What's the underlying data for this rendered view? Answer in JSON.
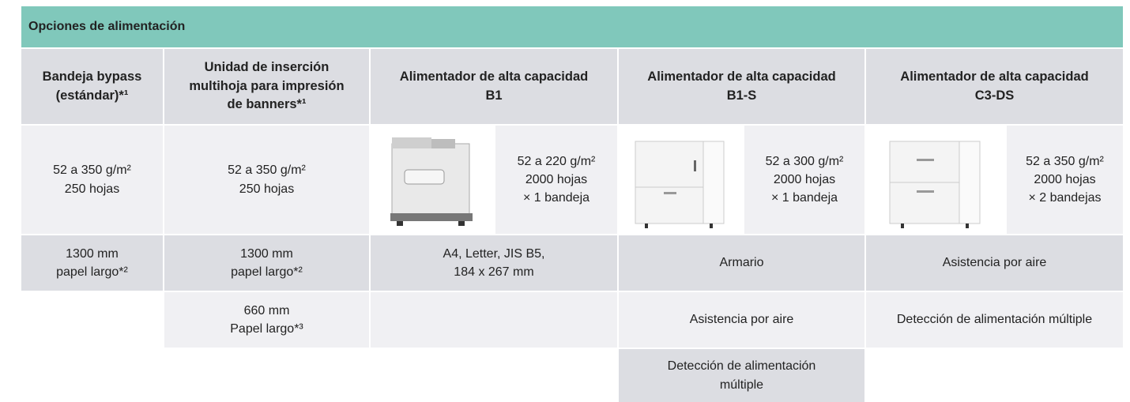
{
  "title": "Opciones de alimentación",
  "table": {
    "header": [
      "Bandeja bypass\n(estándar)*¹",
      "Unidad de inserción\nmultihoja para impresión\nde banners*¹",
      "Alimentador de alta capacidad\nB1",
      "Alimentador de alta capacidad\nB1-S",
      "Alimentador de alta capacidad\nC3-DS"
    ],
    "rows": [
      [
        "52 a 350 g/m²\n250 hojas",
        "52 a 350 g/m²\n250 hojas",
        "52 a 220 g/m²\n2000 hojas\n× 1 bandeja",
        "52 a 300 g/m²\n2000 hojas\n× 1 bandeja",
        "52 a 350 g/m²\n2000 hojas\n× 2 bandejas"
      ],
      [
        "1300 mm\npapel largo*²",
        "1300 mm\npapel largo*²",
        "A4, Letter, JIS B5,\n184 x 267 mm",
        "Armario",
        "Asistencia por aire"
      ],
      [
        "660 mm\nPapel largo*³",
        "Asistencia por aire",
        "Detección de alimentación múltiple"
      ],
      [
        "Detección de alimentación\nmúltiple"
      ]
    ]
  }
}
